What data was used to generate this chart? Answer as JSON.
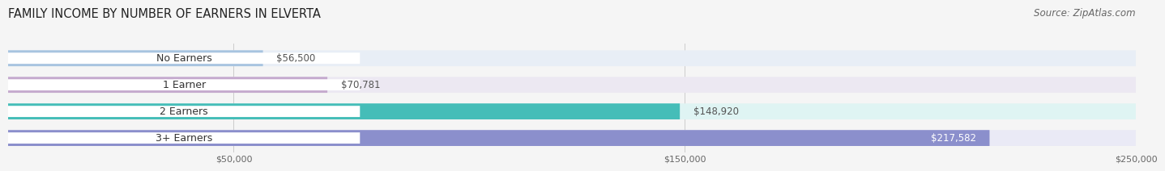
{
  "title": "FAMILY INCOME BY NUMBER OF EARNERS IN ELVERTA",
  "source": "Source: ZipAtlas.com",
  "categories": [
    "No Earners",
    "1 Earner",
    "2 Earners",
    "3+ Earners"
  ],
  "values": [
    56500,
    70781,
    148920,
    217582
  ],
  "labels": [
    "$56,500",
    "$70,781",
    "$148,920",
    "$217,582"
  ],
  "bar_colors": [
    "#a8c4e0",
    "#c5aace",
    "#45bdb8",
    "#8b8fcc"
  ],
  "bar_bg_colors": [
    "#e8eef6",
    "#ece8f2",
    "#dff4f3",
    "#eaeaf6"
  ],
  "label_colors": [
    "#555555",
    "#555555",
    "#555555",
    "#ffffff"
  ],
  "xlim_min": 0,
  "xlim_max": 250000,
  "xtick_values": [
    50000,
    150000,
    250000
  ],
  "xtick_labels": [
    "$50,000",
    "$150,000",
    "$250,000"
  ],
  "background_color": "#f5f5f5",
  "bar_height": 0.6,
  "title_fontsize": 10.5,
  "source_fontsize": 8.5,
  "label_fontsize": 8.5,
  "category_fontsize": 9
}
